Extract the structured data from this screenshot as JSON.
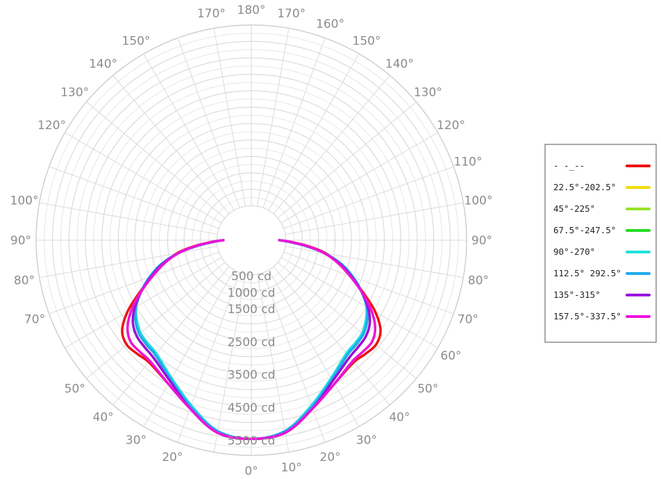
{
  "chart_data": {
    "type": "polar",
    "title": "",
    "angle_labels": [
      {
        "deg": 0,
        "text": "0°"
      },
      {
        "deg": 10,
        "text": "10°"
      },
      {
        "deg": 20,
        "text": "20°"
      },
      {
        "deg": 30,
        "text": "30°"
      },
      {
        "deg": 40,
        "text": "40°"
      },
      {
        "deg": 50,
        "text": "50°"
      },
      {
        "deg": 60,
        "text": "60°"
      },
      {
        "deg": 70,
        "text": "70°"
      },
      {
        "deg": 80,
        "text": "80°"
      },
      {
        "deg": 90,
        "text": "90°"
      },
      {
        "deg": 100,
        "text": "100°"
      },
      {
        "deg": 110,
        "text": "110°"
      },
      {
        "deg": 120,
        "text": "120°"
      },
      {
        "deg": 130,
        "text": "130°"
      },
      {
        "deg": 140,
        "text": "140°"
      },
      {
        "deg": 150,
        "text": "150°"
      },
      {
        "deg": 160,
        "text": "160°"
      },
      {
        "deg": 170,
        "text": "170°"
      },
      {
        "deg": 180,
        "text": "180°"
      },
      {
        "deg": -10,
        "text": ""
      },
      {
        "deg": -20,
        "text": "20°"
      },
      {
        "deg": -30,
        "text": "30°"
      },
      {
        "deg": -40,
        "text": "40°"
      },
      {
        "deg": -50,
        "text": "50°"
      },
      {
        "deg": -60,
        "text": ""
      },
      {
        "deg": -70,
        "text": "70°"
      },
      {
        "deg": -80,
        "text": "80°"
      },
      {
        "deg": -90,
        "text": "90°"
      },
      {
        "deg": -100,
        "text": "100°"
      },
      {
        "deg": -110,
        "text": ""
      },
      {
        "deg": -120,
        "text": "120°"
      },
      {
        "deg": -130,
        "text": "130°"
      },
      {
        "deg": -140,
        "text": "140°"
      },
      {
        "deg": -150,
        "text": "150°"
      },
      {
        "deg": -160,
        "text": ""
      },
      {
        "deg": -170,
        "text": "170°"
      }
    ],
    "radial_labels": [
      {
        "value": 500,
        "text": "500 cd"
      },
      {
        "value": 1000,
        "text": "1000 cd"
      },
      {
        "value": 1500,
        "text": "1500 cd"
      },
      {
        "value": 2000,
        "text": ""
      },
      {
        "value": 2500,
        "text": "2500 cd"
      },
      {
        "value": 3000,
        "text": ""
      },
      {
        "value": 3500,
        "text": "3500 cd"
      },
      {
        "value": 4000,
        "text": ""
      },
      {
        "value": 4500,
        "text": "4500 cd"
      },
      {
        "value": 5000,
        "text": ""
      },
      {
        "value": 5500,
        "text": "5500 cd"
      }
    ],
    "r_max": 6000,
    "r_inner": 500,
    "grid": true,
    "legend_position": "right",
    "series": [
      {
        "name": "",
        "legend_label": "- -_--",
        "color": "#ee1111",
        "points": [
          [
            0,
            5500
          ],
          [
            10,
            5400
          ],
          [
            20,
            4900
          ],
          [
            30,
            4500
          ],
          [
            40,
            4300
          ],
          [
            45,
            4350
          ],
          [
            50,
            4400
          ],
          [
            55,
            4250
          ],
          [
            60,
            3800
          ],
          [
            65,
            3200
          ],
          [
            70,
            2650
          ],
          [
            75,
            2200
          ],
          [
            80,
            1750
          ],
          [
            84,
            1200
          ],
          [
            88,
            600
          ],
          [
            90,
            300
          ]
        ]
      },
      {
        "name": "22.5°-202.5°",
        "legend_label": "22.5°-202.5°",
        "color": "#f2dd00",
        "points": [
          [
            0,
            5500
          ],
          [
            10,
            5400
          ],
          [
            20,
            4900
          ],
          [
            30,
            4500
          ],
          [
            40,
            4250
          ],
          [
            45,
            4250
          ],
          [
            50,
            4250
          ],
          [
            55,
            4050
          ],
          [
            60,
            3650
          ],
          [
            65,
            3150
          ],
          [
            70,
            2650
          ],
          [
            75,
            2200
          ],
          [
            80,
            1700
          ],
          [
            84,
            1150
          ],
          [
            88,
            580
          ],
          [
            90,
            300
          ]
        ]
      },
      {
        "name": "45°-225°",
        "legend_label": "45°-225°",
        "color": "#99e22a",
        "points": [
          [
            0,
            5500
          ],
          [
            10,
            5400
          ],
          [
            20,
            4900
          ],
          [
            30,
            4400
          ],
          [
            40,
            4100
          ],
          [
            45,
            4050
          ],
          [
            50,
            4000
          ],
          [
            55,
            3850
          ],
          [
            60,
            3550
          ],
          [
            65,
            3150
          ],
          [
            70,
            2700
          ],
          [
            75,
            2250
          ],
          [
            80,
            1700
          ],
          [
            84,
            1150
          ],
          [
            88,
            560
          ],
          [
            90,
            300
          ]
        ]
      },
      {
        "name": "67.5°-247.5°",
        "legend_label": "67.5°-247.5°",
        "color": "#22dd22",
        "points": [
          [
            0,
            5500
          ],
          [
            10,
            5350
          ],
          [
            20,
            4850
          ],
          [
            30,
            4350
          ],
          [
            40,
            4000
          ],
          [
            45,
            3950
          ],
          [
            50,
            3900
          ],
          [
            55,
            3750
          ],
          [
            60,
            3500
          ],
          [
            65,
            3150
          ],
          [
            70,
            2750
          ],
          [
            75,
            2300
          ],
          [
            80,
            1700
          ],
          [
            84,
            1100
          ],
          [
            88,
            540
          ],
          [
            90,
            300
          ]
        ]
      },
      {
        "name": "90°-270°",
        "legend_label": "90°-270°",
        "color": "#22e0dd",
        "points": [
          [
            0,
            5500
          ],
          [
            10,
            5350
          ],
          [
            20,
            4800
          ],
          [
            30,
            4300
          ],
          [
            40,
            3950
          ],
          [
            45,
            3900
          ],
          [
            50,
            3850
          ],
          [
            55,
            3700
          ],
          [
            60,
            3500
          ],
          [
            65,
            3150
          ],
          [
            70,
            2750
          ],
          [
            75,
            2300
          ],
          [
            80,
            1700
          ],
          [
            84,
            1100
          ],
          [
            88,
            520
          ],
          [
            90,
            300
          ]
        ]
      },
      {
        "name": "112.5° 292.5°",
        "legend_label": "112.5° 292.5°",
        "color": "#1faaee",
        "points": [
          [
            0,
            5500
          ],
          [
            10,
            5350
          ],
          [
            20,
            4850
          ],
          [
            30,
            4350
          ],
          [
            40,
            4000
          ],
          [
            45,
            3950
          ],
          [
            50,
            3900
          ],
          [
            55,
            3750
          ],
          [
            60,
            3500
          ],
          [
            65,
            3150
          ],
          [
            70,
            2750
          ],
          [
            75,
            2300
          ],
          [
            80,
            1700
          ],
          [
            84,
            1100
          ],
          [
            88,
            540
          ],
          [
            90,
            300
          ]
        ]
      },
      {
        "name": "135°-315°",
        "legend_label": "135°-315°",
        "color": "#9911dd",
        "points": [
          [
            0,
            5500
          ],
          [
            10,
            5400
          ],
          [
            20,
            4900
          ],
          [
            30,
            4400
          ],
          [
            40,
            4100
          ],
          [
            45,
            4050
          ],
          [
            50,
            4000
          ],
          [
            55,
            3850
          ],
          [
            60,
            3550
          ],
          [
            65,
            3150
          ],
          [
            70,
            2700
          ],
          [
            75,
            2250
          ],
          [
            80,
            1700
          ],
          [
            84,
            1150
          ],
          [
            88,
            560
          ],
          [
            90,
            300
          ]
        ]
      },
      {
        "name": "157.5°-337.5°",
        "legend_label": "157.5°-337.5°",
        "color": "#ee11dd",
        "points": [
          [
            0,
            5500
          ],
          [
            10,
            5400
          ],
          [
            20,
            4900
          ],
          [
            30,
            4500
          ],
          [
            40,
            4250
          ],
          [
            45,
            4250
          ],
          [
            50,
            4250
          ],
          [
            55,
            4050
          ],
          [
            60,
            3650
          ],
          [
            65,
            3150
          ],
          [
            70,
            2650
          ],
          [
            75,
            2200
          ],
          [
            80,
            1700
          ],
          [
            84,
            1150
          ],
          [
            88,
            580
          ],
          [
            90,
            300
          ]
        ]
      }
    ]
  }
}
